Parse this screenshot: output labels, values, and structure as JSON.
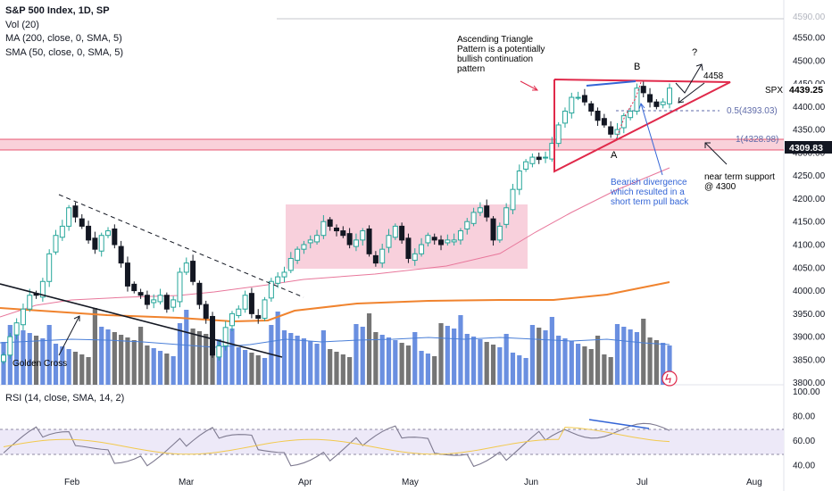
{
  "legend": {
    "title": "S&P 500 Index, 1D, SP",
    "line2": "Vol (20)",
    "line3": "MA (200, close, 0, SMA, 5)",
    "line4": "SMA (50, close, 0, SMA, 5)",
    "rsi": "RSI (14, close, SMA, 14, 2)"
  },
  "colors": {
    "up": "#26a69a",
    "down": "#131722",
    "volume_up": "#6a8fe0",
    "volume_down": "#757575",
    "sma50": "#e8779b",
    "ma200": "#f0832e",
    "vol_ma": "#4a7fd8",
    "rsi_line": "#7e7a90",
    "rsi_ma": "#f2c94c",
    "rsi_band": "#ede9f8",
    "triangle": "#e0294a",
    "box": "#f7cbd8",
    "divergence": "#3465d6",
    "price_tag": "#131722",
    "support_zone": "#f8c9d4"
  },
  "price_axis": {
    "ticks": [
      "4550.00",
      "4500.00",
      "4450.00",
      "4400.00",
      "4350.00",
      "4300.00",
      "4250.00",
      "4200.00",
      "4150.00",
      "4100.00",
      "4050.00",
      "4000.00",
      "3950.00",
      "3900.00",
      "3850.00",
      "3800.00"
    ],
    "top_label": "4590.00",
    "last_price": "4439.25",
    "last_symbol": "SPX",
    "support_tag": "4309.83"
  },
  "rsi_axis": {
    "ticks": [
      "100.00",
      "80.00",
      "60.00",
      "40.00"
    ]
  },
  "time_axis": {
    "labels": [
      "Feb",
      "Mar",
      "Apr",
      "May",
      "Jun",
      "Jul",
      "Aug"
    ]
  },
  "annotations": {
    "pattern_text": [
      "Ascending Triangle",
      "Pattern is a potentially",
      "bullish continuation",
      "pattern"
    ],
    "divergence_text": [
      "Bearish divergence",
      "which resulted in a",
      "short term pull back"
    ],
    "support_text": [
      "near term support",
      "@ 4300"
    ],
    "golden_cross": "Golden Cross",
    "label_a": "A",
    "label_b": "B",
    "question": "?",
    "level_4458": "4458",
    "fib_05": "0.5(4393.03)",
    "fib_1": "1(4328.98)"
  },
  "chart_data": {
    "type": "candlestick",
    "title": "S&P 500 Index, 1D, SP",
    "ylim": [
      3800,
      4600
    ],
    "approximate_closes": [
      3860,
      3900,
      3930,
      3960,
      3990,
      3990,
      4020,
      4080,
      4120,
      4140,
      4180,
      4160,
      4140,
      4110,
      4090,
      4120,
      4130,
      4100,
      4060,
      4010,
      4000,
      3990,
      3970,
      3980,
      3990,
      3960,
      3980,
      4040,
      4060,
      4020,
      3970,
      3940,
      3860,
      3880,
      3920,
      3950,
      3960,
      3990,
      3950,
      3940,
      3980,
      4020,
      4030,
      4040,
      4070,
      4090,
      4100,
      4110,
      4120,
      4150,
      4140,
      4130,
      4120,
      4100,
      4110,
      4130,
      4080,
      4060,
      4090,
      4120,
      4140,
      4110,
      4070,
      4080,
      4100,
      4120,
      4110,
      4100,
      4110,
      4110,
      4130,
      4150,
      4170,
      4180,
      4160,
      4110,
      4140,
      4180,
      4220,
      4260,
      4280,
      4290,
      4285,
      4290,
      4320,
      4360,
      4390,
      4420,
      4420,
      4410,
      4390,
      4370,
      4360,
      4340,
      4350,
      4380,
      4390,
      4440,
      4430,
      4410,
      4400,
      4410,
      4440
    ],
    "sma50_range": [
      3940,
      4260
    ],
    "ma200_range": [
      3960,
      4020
    ],
    "rsi_range": [
      35,
      80
    ]
  }
}
